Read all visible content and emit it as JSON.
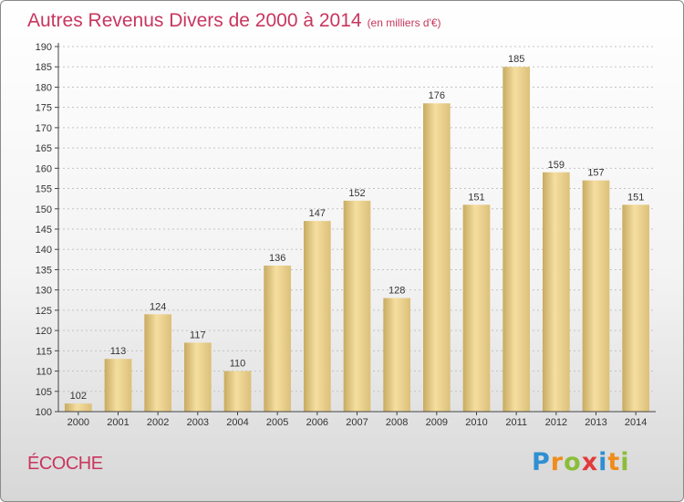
{
  "header": {
    "title": "Autres Revenus Divers de 2000 à 2014",
    "unit": "(en milliers d'€)"
  },
  "footer": {
    "commune": "ÉCOCHE",
    "logo": [
      "P",
      "r",
      "o",
      "x",
      "i",
      "t",
      "i"
    ]
  },
  "colors": {
    "title": "#c8365e",
    "bar_light": "#f5dea0",
    "bar_dark": "#c8ab62",
    "axis": "#444444",
    "grid": "#cccccc"
  },
  "chart_data": {
    "type": "bar",
    "categories": [
      "2000",
      "2001",
      "2002",
      "2003",
      "2004",
      "2005",
      "2006",
      "2007",
      "2008",
      "2009",
      "2010",
      "2011",
      "2012",
      "2013",
      "2014"
    ],
    "values": [
      102,
      113,
      124,
      117,
      110,
      136,
      147,
      152,
      128,
      176,
      151,
      185,
      159,
      157,
      151
    ],
    "ylim": [
      100,
      190
    ],
    "yticks": [
      100,
      105,
      110,
      115,
      120,
      125,
      130,
      135,
      140,
      145,
      150,
      155,
      160,
      165,
      170,
      175,
      180,
      185,
      190
    ],
    "grid": "horizontal, dotted",
    "data_labels": true
  }
}
